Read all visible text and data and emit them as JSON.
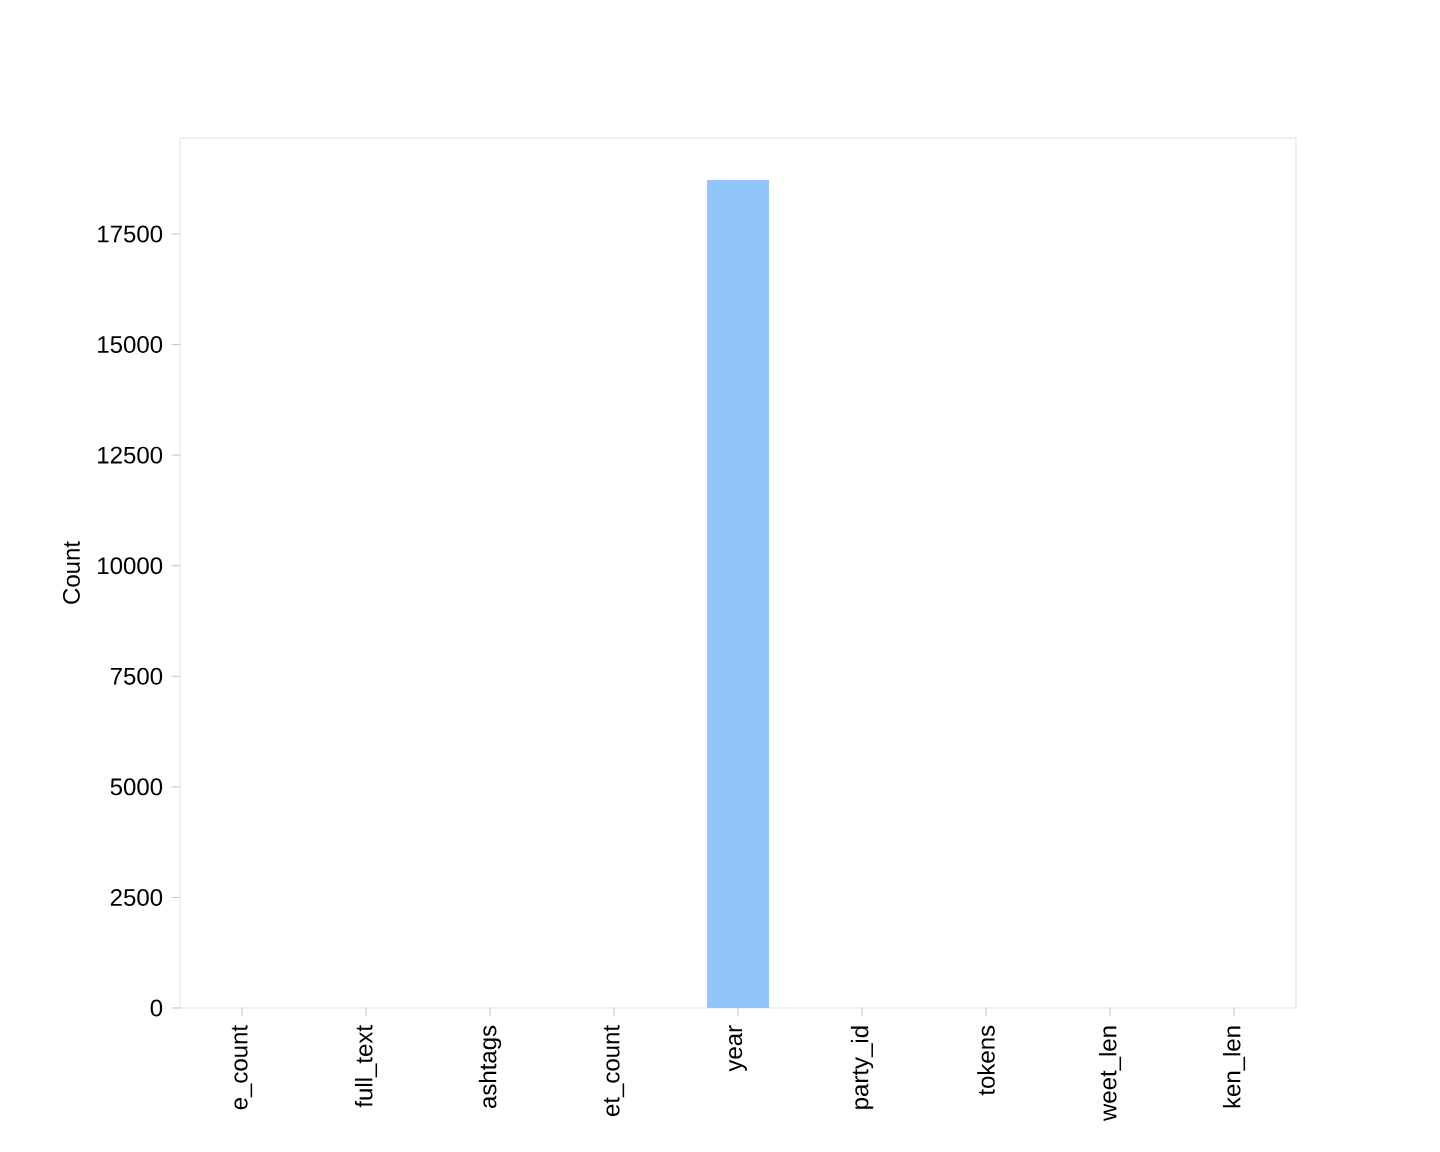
{
  "chart_data": {
    "type": "bar",
    "ylabel": "Count",
    "categories": [
      "e_count",
      "full_text",
      "ashtags",
      "et_count",
      "year",
      "party_id",
      "tokens",
      "weet_len",
      "ken_len"
    ],
    "values": [
      0,
      0,
      0,
      0,
      18720,
      0,
      0,
      0,
      0
    ],
    "color": "#93c5fd",
    "ylim": [
      0,
      19670
    ],
    "yticks": [
      0,
      2500,
      5000,
      7500,
      10000,
      12500,
      15000,
      17500
    ]
  }
}
